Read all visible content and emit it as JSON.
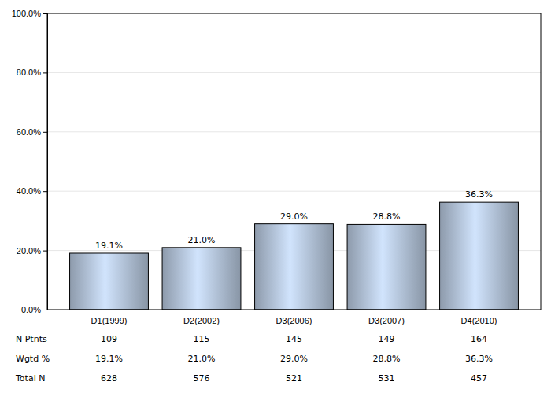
{
  "chart_data": {
    "type": "bar",
    "categories": [
      "D1(1999)",
      "D2(2002)",
      "D3(2006)",
      "D3(2007)",
      "D4(2010)"
    ],
    "values": [
      19.1,
      21.0,
      29.0,
      28.8,
      36.3
    ],
    "value_labels": [
      "19.1%",
      "21.0%",
      "29.0%",
      "28.8%",
      "36.3%"
    ],
    "data_labels": true,
    "ylim": [
      0,
      100
    ],
    "yticks": [
      {
        "value": 0,
        "label": "0.0%"
      },
      {
        "value": 20,
        "label": "20.0%"
      },
      {
        "value": 40,
        "label": "40.0%"
      },
      {
        "value": 60,
        "label": "60.0%"
      },
      {
        "value": 80,
        "label": "80.0%"
      },
      {
        "value": 100,
        "label": "100.0%"
      }
    ],
    "grid": true,
    "color": "#a9b8cc",
    "table": {
      "rows": [
        {
          "label": "N Ptnts",
          "values": [
            109,
            115,
            145,
            149,
            164
          ]
        },
        {
          "label": "Wgtd %",
          "values": [
            "19.1%",
            "21.0%",
            "29.0%",
            "28.8%",
            "36.3%"
          ]
        },
        {
          "label": "Total N",
          "values": [
            628,
            576,
            521,
            531,
            457
          ]
        }
      ]
    }
  }
}
